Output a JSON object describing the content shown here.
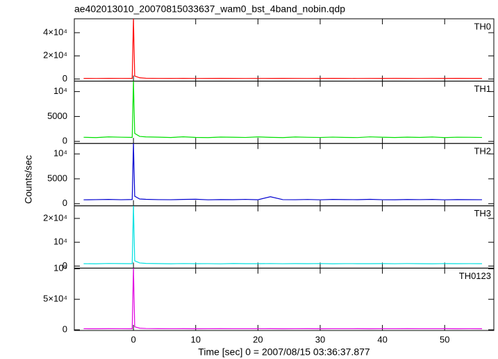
{
  "chart_data": [
    {
      "type": "line",
      "title": "ae402013010_20070815033637_wam0_bst_4band_nobin.qdp",
      "x": [
        -8,
        -6,
        -4,
        -2,
        -0.2,
        0,
        0.2,
        1,
        2,
        4,
        6,
        8,
        10,
        12,
        14,
        16,
        18,
        20,
        22,
        24,
        26,
        28,
        30,
        32,
        34,
        36,
        38,
        40,
        42,
        44,
        46,
        48,
        50,
        52,
        54,
        56
      ],
      "series": [
        {
          "name": "TH0",
          "color": "#ff0000",
          "values": [
            520,
            480,
            610,
            540,
            500,
            52000,
            2600,
            1100,
            700,
            560,
            520,
            590,
            480,
            530,
            610,
            500,
            470,
            560,
            520,
            600,
            540,
            490,
            510,
            580,
            530,
            470,
            560,
            500,
            620,
            510,
            480,
            550,
            530,
            590,
            500,
            520
          ]
        }
      ],
      "xlim": [
        -9.5,
        57.9
      ],
      "ylim": [
        -1800,
        52000
      ],
      "yticks": [
        0,
        {
          "value": 20000,
          "label": "2×10⁴"
        },
        {
          "value": 40000,
          "label": "4×10⁴"
        }
      ]
    },
    {
      "type": "line",
      "x": [
        -8,
        -6,
        -4,
        -2,
        -0.2,
        0,
        0.2,
        1,
        2,
        4,
        6,
        8,
        10,
        12,
        14,
        16,
        18,
        20,
        22,
        24,
        26,
        28,
        30,
        32,
        34,
        36,
        38,
        40,
        42,
        44,
        46,
        48,
        50,
        52,
        54,
        56
      ],
      "series": [
        {
          "name": "TH1",
          "color": "#00e000",
          "values": [
            820,
            760,
            900,
            840,
            800,
            12100,
            1600,
            1000,
            900,
            850,
            780,
            920,
            800,
            760,
            870,
            830,
            790,
            900,
            810,
            760,
            880,
            820,
            790,
            860,
            800,
            770,
            910,
            830,
            780,
            850,
            800,
            880,
            760,
            840,
            820,
            790
          ]
        }
      ],
      "xlim": [
        -9.5,
        57.9
      ],
      "ylim": [
        -420,
        12100
      ],
      "yticks": [
        0,
        5000,
        {
          "value": 10000,
          "label": "10⁴"
        }
      ]
    },
    {
      "type": "line",
      "ylabel": "Counts/sec",
      "x": [
        -8,
        -6,
        -4,
        -2,
        -0.2,
        0,
        0.2,
        1,
        2,
        4,
        6,
        8,
        10,
        12,
        14,
        16,
        18,
        20,
        22,
        24,
        26,
        28,
        30,
        32,
        34,
        36,
        38,
        40,
        42,
        44,
        46,
        48,
        50,
        52,
        54,
        56
      ],
      "series": [
        {
          "name": "TH2",
          "color": "#0000d0",
          "values": [
            780,
            820,
            860,
            800,
            840,
            12100,
            1500,
            950,
            880,
            820,
            800,
            860,
            900,
            780,
            830,
            810,
            870,
            790,
            1400,
            820,
            800,
            850,
            780,
            860,
            830,
            810,
            880,
            800,
            790,
            840,
            820,
            860,
            780,
            830,
            810,
            800
          ]
        }
      ],
      "xlim": [
        -9.5,
        57.9
      ],
      "ylim": [
        -420,
        12100
      ],
      "yticks": [
        0,
        5000,
        {
          "value": 10000,
          "label": "10⁴"
        }
      ]
    },
    {
      "type": "line",
      "x": [
        -8,
        -6,
        -4,
        -2,
        -0.2,
        0,
        0.2,
        1,
        2,
        4,
        6,
        8,
        10,
        12,
        14,
        16,
        18,
        20,
        22,
        24,
        26,
        28,
        30,
        32,
        34,
        36,
        38,
        40,
        42,
        44,
        46,
        48,
        50,
        52,
        54,
        56
      ],
      "series": [
        {
          "name": "TH3",
          "color": "#00e0e0",
          "values": [
            1000,
            950,
            1080,
            1020,
            980,
            25300,
            2200,
            1300,
            1100,
            1020,
            960,
            1050,
            990,
            1010,
            940,
            1060,
            1000,
            980,
            1040,
            970,
            1020,
            990,
            1050,
            960,
            1010,
            1000,
            980,
            1030,
            970,
            1040,
            1000,
            960,
            1020,
            990,
            1010,
            980
          ]
        }
      ],
      "xlim": [
        -9.5,
        57.9
      ],
      "ylim": [
        -880,
        25300
      ],
      "yticks": [
        0,
        {
          "value": 10000,
          "label": "10⁴"
        },
        {
          "value": 20000,
          "label": "2×10⁴"
        }
      ]
    },
    {
      "type": "line",
      "xlabel": "Time [sec] 0 = 2007/08/15 03:36:37.877",
      "x": [
        -8,
        -6,
        -4,
        -2,
        -0.2,
        0,
        0.2,
        1,
        2,
        4,
        6,
        8,
        10,
        12,
        14,
        16,
        18,
        20,
        22,
        24,
        26,
        28,
        30,
        32,
        34,
        36,
        38,
        40,
        42,
        44,
        46,
        48,
        50,
        52,
        54,
        56
      ],
      "series": [
        {
          "name": "TH0123",
          "color": "#e000e0",
          "values": [
            1800,
            1750,
            1900,
            1820,
            1780,
            101000,
            5000,
            2600,
            2100,
            1850,
            1800,
            1900,
            1760,
            1820,
            1880,
            1790,
            1840,
            1800,
            1870,
            1760,
            1820,
            1900,
            1780,
            1830,
            1800,
            1860,
            1770,
            1840,
            1810,
            1880,
            1790,
            1820,
            1850,
            1780,
            1800,
            1760
          ]
        }
      ],
      "xlim": [
        -9.5,
        57.9
      ],
      "ylim": [
        -1100,
        101000
      ],
      "yticks": [
        0,
        {
          "value": 50000,
          "label": "5×10⁴"
        },
        {
          "value": 100000,
          "label": "10⁵"
        }
      ],
      "xticks": [
        0,
        10,
        20,
        30,
        40,
        50
      ]
    }
  ]
}
